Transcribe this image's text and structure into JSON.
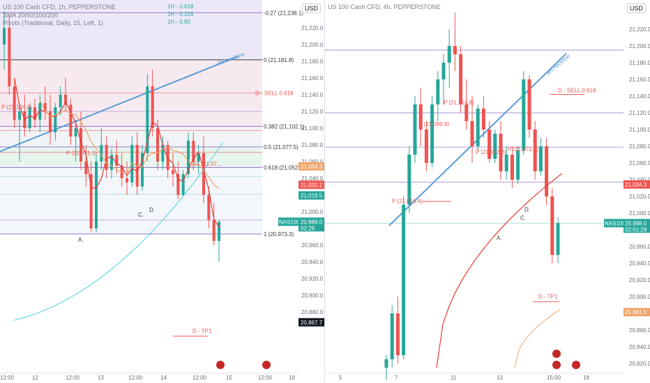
{
  "colors": {
    "bull": "#26a69a",
    "bear": "#ef5350",
    "neckline": "#5b9bd5",
    "sma_red": "#e53935",
    "sma_cyan": "#4dd0e1",
    "sma_orange": "#f0a56b",
    "fib_violet": "#9575cd"
  },
  "left": {
    "header_title": "US 100 Cash CFD, 1h, PEPPERSTONE",
    "header_sma": "SMA 20/50/100/200",
    "header_pivots": "Pivots (Traditional, Daily, 15, Left, 1)",
    "currency": "USD",
    "mini_labels": [
      "1H - 0.618",
      "1H - 0.316",
      "1H - 0.80"
    ],
    "neckline_label": "4H neckline",
    "x_ticks": [
      "12:00",
      "12",
      "12:00",
      "13",
      "12:00",
      "14",
      "12:00",
      "15",
      "12:00",
      "18"
    ],
    "y_ticks": [
      "21,220.0",
      "21,200.0",
      "21,180.0",
      "21,160.0",
      "21,140.0",
      "21,120.0",
      "21,100.0",
      "21,080.0",
      "21,060.0",
      "21,040.0",
      "21,020.0",
      "21,000.0",
      "20,980.0",
      "20,960.0",
      "20,940.0",
      "20,920.0",
      "20,900.0",
      "20,880.0"
    ],
    "fib_levels": [
      {
        "label": "-0.27 (21,238.1)",
        "price": 21238.1
      },
      {
        "label": "0 (21,181.8)",
        "price": 21181.8
      },
      {
        "label": "0.382 (21,102.1)",
        "price": 21102.1
      },
      {
        "label": "0.5 (21,077.5)",
        "price": 21077.5
      },
      {
        "label": "0.618 (21,052.9)",
        "price": 21052.9
      },
      {
        "label": "1 (20,973.3)",
        "price": 20973.3
      }
    ],
    "annotations": {
      "sell_label": "D - SELL 0.618",
      "tp_label": "D - TP1",
      "pivot_p1": "P (21,124.8)",
      "pivot_p2": "P (21,071.1)",
      "point_a": "A.",
      "point_c": "C.",
      "point_d": "D.",
      "pivot_small": "R1 (21,07..."
    },
    "price_badges": [
      {
        "text": "21,054.3",
        "color": "#f0a56b",
        "price": 21054.3
      },
      {
        "text": "21,032.2",
        "color": "#ef5350",
        "price": 21032.2
      },
      {
        "text": "21,019.5",
        "color": "#26a69a",
        "price": 21019.5
      },
      {
        "text": "20,867.7",
        "color": "#131722",
        "price": 20867.7
      }
    ],
    "symbol_badge": {
      "symbol": "NAS100",
      "price": "20,988.0",
      "countdown": "02:29"
    }
  },
  "right": {
    "header_title": "US 100 Cash CFD, 4h, PEPPERSTONE",
    "currency": "USD",
    "neckline_label": "4H neckline",
    "x_ticks": [
      "5",
      "7",
      "11",
      "13",
      "15:00",
      "18"
    ],
    "y_ticks": [
      "21,220.0",
      "21,200.0",
      "21,180.0",
      "21,160.0",
      "21,140.0",
      "21,120.0",
      "21,100.0",
      "21,080.0",
      "21,060.0",
      "21,040.0",
      "21,020.0",
      "21,000.0",
      "20,980.0",
      "20,960.0",
      "20,940.0",
      "20,920.0",
      "20,900.0",
      "20,880.0",
      "20,860.0",
      "20,840.0",
      "20,820.0"
    ],
    "annotations": {
      "sell_label": "D - SELL 0.618",
      "tp_label": "D - TP1",
      "pivot_p1": "P (21,124.8)",
      "pivot_p2": "P (21,099.9)",
      "pivot_p3": "P (21,073.3)",
      "pivot_p4": "P (21,071.1)",
      "pivot_p5": "P (21,016.6)",
      "point_a": "A.",
      "point_c": "C.",
      "point_d": "D."
    },
    "price_badges": [
      {
        "text": "21,034.3",
        "color": "#ef5350",
        "price": 21034.3
      },
      {
        "text": "20,881.5",
        "color": "#f0a56b",
        "price": 20881.5
      }
    ],
    "symbol_badge": {
      "symbol": "NAS100",
      "price": "20,988.0",
      "countdown": "02:01:28"
    }
  },
  "chart_data": [
    {
      "type": "candlestick",
      "title": "US 100 Cash CFD, 1h, PEPPERSTONE",
      "ylim": [
        20860,
        21245
      ],
      "ohlc": [
        [
          21200,
          21240,
          21170,
          21220
        ],
        [
          21220,
          21235,
          21140,
          21150
        ],
        [
          21150,
          21160,
          21100,
          21110
        ],
        [
          21110,
          21130,
          21060,
          21120
        ],
        [
          21120,
          21140,
          21090,
          21100
        ],
        [
          21100,
          21130,
          21095,
          21125
        ],
        [
          21125,
          21135,
          21100,
          21110
        ],
        [
          21110,
          21140,
          21095,
          21130
        ],
        [
          21130,
          21150,
          21110,
          21120
        ],
        [
          21120,
          21140,
          21080,
          21095
        ],
        [
          21095,
          21130,
          21085,
          21125
        ],
        [
          21125,
          21150,
          21115,
          21140
        ],
        [
          21140,
          21160,
          21120,
          21128
        ],
        [
          21128,
          21135,
          21080,
          21090
        ],
        [
          21090,
          21110,
          21060,
          21100
        ],
        [
          21100,
          21120,
          21050,
          21060
        ],
        [
          21060,
          21080,
          21030,
          21045
        ],
        [
          21045,
          21060,
          20975,
          20980
        ],
        [
          20980,
          21070,
          20975,
          21060
        ],
        [
          21060,
          21100,
          21050,
          21080
        ],
        [
          21080,
          21090,
          21040,
          21050
        ],
        [
          21050,
          21075,
          21040,
          21068
        ],
        [
          21068,
          21085,
          21045,
          21055
        ],
        [
          21055,
          21070,
          21030,
          21040
        ],
        [
          21040,
          21060,
          21020,
          21035
        ],
        [
          21035,
          21090,
          21030,
          21080
        ],
        [
          21080,
          21095,
          21020,
          21030
        ],
        [
          21030,
          21080,
          21025,
          21070
        ],
        [
          21070,
          21165,
          21060,
          21150
        ],
        [
          21150,
          21170,
          21090,
          21100
        ],
        [
          21100,
          21110,
          21050,
          21060
        ],
        [
          21060,
          21090,
          21050,
          21080
        ],
        [
          21080,
          21085,
          21040,
          21050
        ],
        [
          21050,
          21070,
          21030,
          21045
        ],
        [
          21045,
          21060,
          21015,
          21020
        ],
        [
          21020,
          21050,
          21018,
          21045
        ],
        [
          21045,
          21095,
          21040,
          21085
        ],
        [
          21085,
          21095,
          21050,
          21060
        ],
        [
          21060,
          21080,
          21045,
          21070
        ],
        [
          21070,
          21090,
          21010,
          21020
        ],
        [
          21020,
          21030,
          20980,
          20990
        ],
        [
          20990,
          21010,
          20960,
          20965
        ],
        [
          20965,
          20990,
          20940,
          20988
        ]
      ]
    },
    {
      "type": "candlestick",
      "title": "US 100 Cash CFD, 4h, PEPPERSTONE",
      "ylim": [
        20815,
        21245
      ],
      "ohlc": [
        [
          20815,
          20830,
          20800,
          20825
        ],
        [
          20825,
          20890,
          20815,
          20880
        ],
        [
          20880,
          20900,
          20820,
          20830
        ],
        [
          20830,
          21020,
          20825,
          21010
        ],
        [
          21010,
          21080,
          21000,
          21070
        ],
        [
          21070,
          21140,
          21060,
          21130
        ],
        [
          21130,
          21150,
          21080,
          21100
        ],
        [
          21100,
          21110,
          21050,
          21060
        ],
        [
          21060,
          21140,
          21055,
          21130
        ],
        [
          21130,
          21170,
          21110,
          21160
        ],
        [
          21160,
          21190,
          21130,
          21180
        ],
        [
          21180,
          21220,
          21150,
          21200
        ],
        [
          21200,
          21240,
          21170,
          21190
        ],
        [
          21190,
          21200,
          21120,
          21130
        ],
        [
          21130,
          21160,
          21100,
          21110
        ],
        [
          21110,
          21140,
          21060,
          21080
        ],
        [
          21080,
          21130,
          21075,
          21125
        ],
        [
          21125,
          21140,
          21090,
          21100
        ],
        [
          21100,
          21110,
          21060,
          21065
        ],
        [
          21065,
          21100,
          21060,
          21095
        ],
        [
          21095,
          21110,
          21040,
          21050
        ],
        [
          21050,
          21080,
          21040,
          21070
        ],
        [
          21070,
          21080,
          21030,
          21040
        ],
        [
          21040,
          21080,
          21035,
          21075
        ],
        [
          21075,
          21170,
          21070,
          21160
        ],
        [
          21160,
          21165,
          21090,
          21100
        ],
        [
          21100,
          21110,
          21040,
          21050
        ],
        [
          21050,
          21090,
          21045,
          21080
        ],
        [
          21080,
          21090,
          21010,
          21020
        ],
        [
          21020,
          21030,
          20940,
          20950
        ],
        [
          20950,
          20995,
          20940,
          20988
        ]
      ]
    }
  ]
}
